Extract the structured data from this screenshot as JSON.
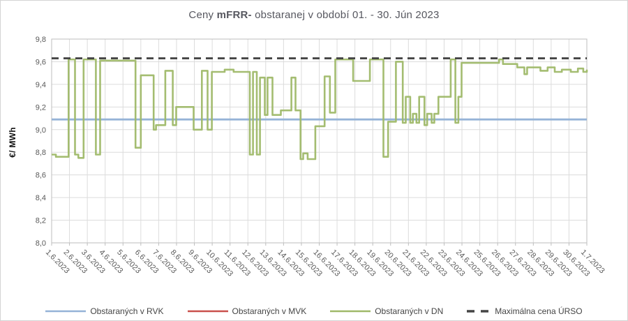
{
  "chart_title": {
    "prefix": "Ceny ",
    "bold": "mFRR- ",
    "rest": "obstaranej v období 01. - 30. Jún 2023"
  },
  "y_axis_title": "€/ MWh",
  "colors": {
    "rvk_blue": "#95B3D7",
    "mvk_red": "#C9504C",
    "dn_green": "#9FB969",
    "urso_dash": "#454545",
    "gridline": "#dcdcdc",
    "axis_line": "#bdbdbd",
    "tick_text": "#595959",
    "title_text": "#56575f"
  },
  "chart_data": {
    "type": "line",
    "title": "Ceny mFRR- obstaranej v období 01. - 30. Jún 2023",
    "xlabel": "",
    "ylabel": "€/ MWh",
    "ylim": [
      8.0,
      9.8
    ],
    "x_range": [
      0,
      30
    ],
    "grid": true,
    "legend_position": "bottom",
    "x_tick_rotation_deg": 45,
    "y_ticks": [
      {
        "v": 9.8,
        "label": "9,8"
      },
      {
        "v": 9.6,
        "label": "9,6"
      },
      {
        "v": 9.4,
        "label": "9,4"
      },
      {
        "v": 9.2,
        "label": "9,2"
      },
      {
        "v": 9.0,
        "label": "9,0"
      },
      {
        "v": 8.8,
        "label": "8,8"
      },
      {
        "v": 8.6,
        "label": "8,6"
      },
      {
        "v": 8.4,
        "label": "8,4"
      },
      {
        "v": 8.2,
        "label": "8,2"
      },
      {
        "v": 8.0,
        "label": "8,0"
      }
    ],
    "x_labels": [
      "1.6.2023",
      "2.6.2023",
      "3.6.2023",
      "4.6.2023",
      "5.6.2023",
      "6.6.2023",
      "7.6.2023",
      "8.6.2023",
      "9.6.2023",
      "10.6.2023",
      "11.6.2023",
      "12.6.2023",
      "13.6.2023",
      "14.6.2023",
      "15.6.2023",
      "16.6.2023",
      "17.6.2023",
      "18.6.2023",
      "19.6.2023",
      "20.6.2023",
      "21.6.2023",
      "22.6.2023",
      "23.6.2023",
      "24.6.2023",
      "25.6.2023",
      "26.6.2023",
      "27.6.2023",
      "28.6.2023",
      "29.6.2023",
      "30.6.2023",
      "1.7.2023"
    ],
    "series": [
      {
        "id": "rvk",
        "name": "Obstaraných v RVK",
        "color": "#95B3D7",
        "style": "solid",
        "constant": 9.09
      },
      {
        "id": "mvk",
        "name": "Obstaraných v MVK",
        "color": "#C9504C",
        "style": "solid",
        "constant": 9.09
      },
      {
        "id": "dn",
        "name": "Obstaraných v DN",
        "color": "#9FB969",
        "style": "step",
        "points": [
          [
            0.0,
            8.78
          ],
          [
            0.24,
            8.76
          ],
          [
            0.95,
            9.62
          ],
          [
            1.31,
            8.78
          ],
          [
            1.5,
            8.75
          ],
          [
            1.79,
            9.62
          ],
          [
            2.48,
            8.78
          ],
          [
            2.72,
            9.61
          ],
          [
            4.7,
            8.84
          ],
          [
            5.0,
            9.48
          ],
          [
            5.72,
            9.0
          ],
          [
            5.85,
            9.04
          ],
          [
            6.37,
            9.52
          ],
          [
            6.79,
            9.04
          ],
          [
            6.98,
            9.2
          ],
          [
            7.96,
            9.0
          ],
          [
            8.42,
            9.52
          ],
          [
            8.74,
            9.0
          ],
          [
            8.98,
            9.51
          ],
          [
            9.7,
            9.53
          ],
          [
            10.2,
            9.51
          ],
          [
            11.11,
            8.78
          ],
          [
            11.29,
            9.51
          ],
          [
            11.5,
            8.78
          ],
          [
            11.68,
            9.46
          ],
          [
            11.95,
            9.13
          ],
          [
            12.1,
            9.46
          ],
          [
            12.38,
            9.13
          ],
          [
            12.85,
            9.17
          ],
          [
            13.44,
            9.46
          ],
          [
            13.67,
            9.17
          ],
          [
            13.95,
            8.74
          ],
          [
            14.1,
            8.79
          ],
          [
            14.35,
            8.74
          ],
          [
            14.78,
            9.03
          ],
          [
            15.3,
            9.47
          ],
          [
            15.6,
            9.15
          ],
          [
            15.9,
            9.62
          ],
          [
            16.9,
            9.43
          ],
          [
            17.84,
            9.62
          ],
          [
            18.6,
            8.76
          ],
          [
            18.86,
            9.07
          ],
          [
            19.3,
            9.6
          ],
          [
            19.68,
            9.06
          ],
          [
            19.85,
            9.29
          ],
          [
            20.1,
            9.06
          ],
          [
            20.25,
            9.14
          ],
          [
            20.45,
            9.06
          ],
          [
            20.6,
            9.29
          ],
          [
            20.9,
            9.04
          ],
          [
            21.05,
            9.14
          ],
          [
            21.3,
            9.06
          ],
          [
            21.45,
            9.14
          ],
          [
            21.68,
            9.29
          ],
          [
            22.37,
            9.62
          ],
          [
            22.63,
            9.06
          ],
          [
            22.8,
            9.29
          ],
          [
            22.98,
            9.59
          ],
          [
            25.08,
            9.62
          ],
          [
            25.3,
            9.58
          ],
          [
            26.1,
            9.55
          ],
          [
            26.5,
            9.49
          ],
          [
            26.65,
            9.55
          ],
          [
            27.4,
            9.52
          ],
          [
            27.8,
            9.55
          ],
          [
            28.2,
            9.51
          ],
          [
            28.6,
            9.53
          ],
          [
            29.1,
            9.51
          ],
          [
            29.5,
            9.54
          ],
          [
            29.8,
            9.51
          ],
          [
            30.0,
            9.53
          ]
        ]
      },
      {
        "id": "urso",
        "name": "Maximálna cena ÚRSO",
        "color": "#454545",
        "style": "dashed",
        "constant": 9.63
      }
    ]
  }
}
